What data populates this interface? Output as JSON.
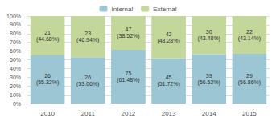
{
  "chart_data": {
    "type": "bar",
    "stacked": true,
    "categories": [
      "2010",
      "2011",
      "2012",
      "2013",
      "2014",
      "2015"
    ],
    "series": [
      {
        "name": "Internal",
        "color": "#9DC6D4",
        "values": [
          55.32,
          53.06,
          61.48,
          51.72,
          56.52,
          56.86
        ],
        "value_labels": [
          "26\n(55.32%)",
          "26\n(53.06%)",
          "75\n(61.48%)",
          "45\n(51.72%)",
          "39\n(56.52%)",
          "29\n(56.86%)"
        ]
      },
      {
        "name": "External",
        "color": "#C4D79B",
        "values": [
          44.68,
          46.94,
          38.52,
          48.28,
          43.48,
          43.14
        ],
        "value_labels": [
          "21\n(44.68%)",
          "23\n(46.94%)",
          "47\n(38.52%)",
          "42\n(48.28%)",
          "30\n(43.48%)",
          "22\n(43.14%)"
        ]
      }
    ],
    "ylim": [
      0,
      100
    ],
    "yticks": [
      {
        "value": 0,
        "label": "0%"
      },
      {
        "value": 10,
        "label": "10%"
      },
      {
        "value": 20,
        "label": "20%"
      },
      {
        "value": 30,
        "label": "30%"
      },
      {
        "value": 40,
        "label": "40%"
      },
      {
        "value": 50,
        "label": "50%"
      },
      {
        "value": 60,
        "label": "60%"
      },
      {
        "value": 70,
        "label": "70%"
      },
      {
        "value": 80,
        "label": "80%"
      },
      {
        "value": 90,
        "label": "90%"
      },
      {
        "value": 100,
        "label": "100%"
      }
    ],
    "grid": true,
    "legend": "top",
    "data_labels": true
  }
}
